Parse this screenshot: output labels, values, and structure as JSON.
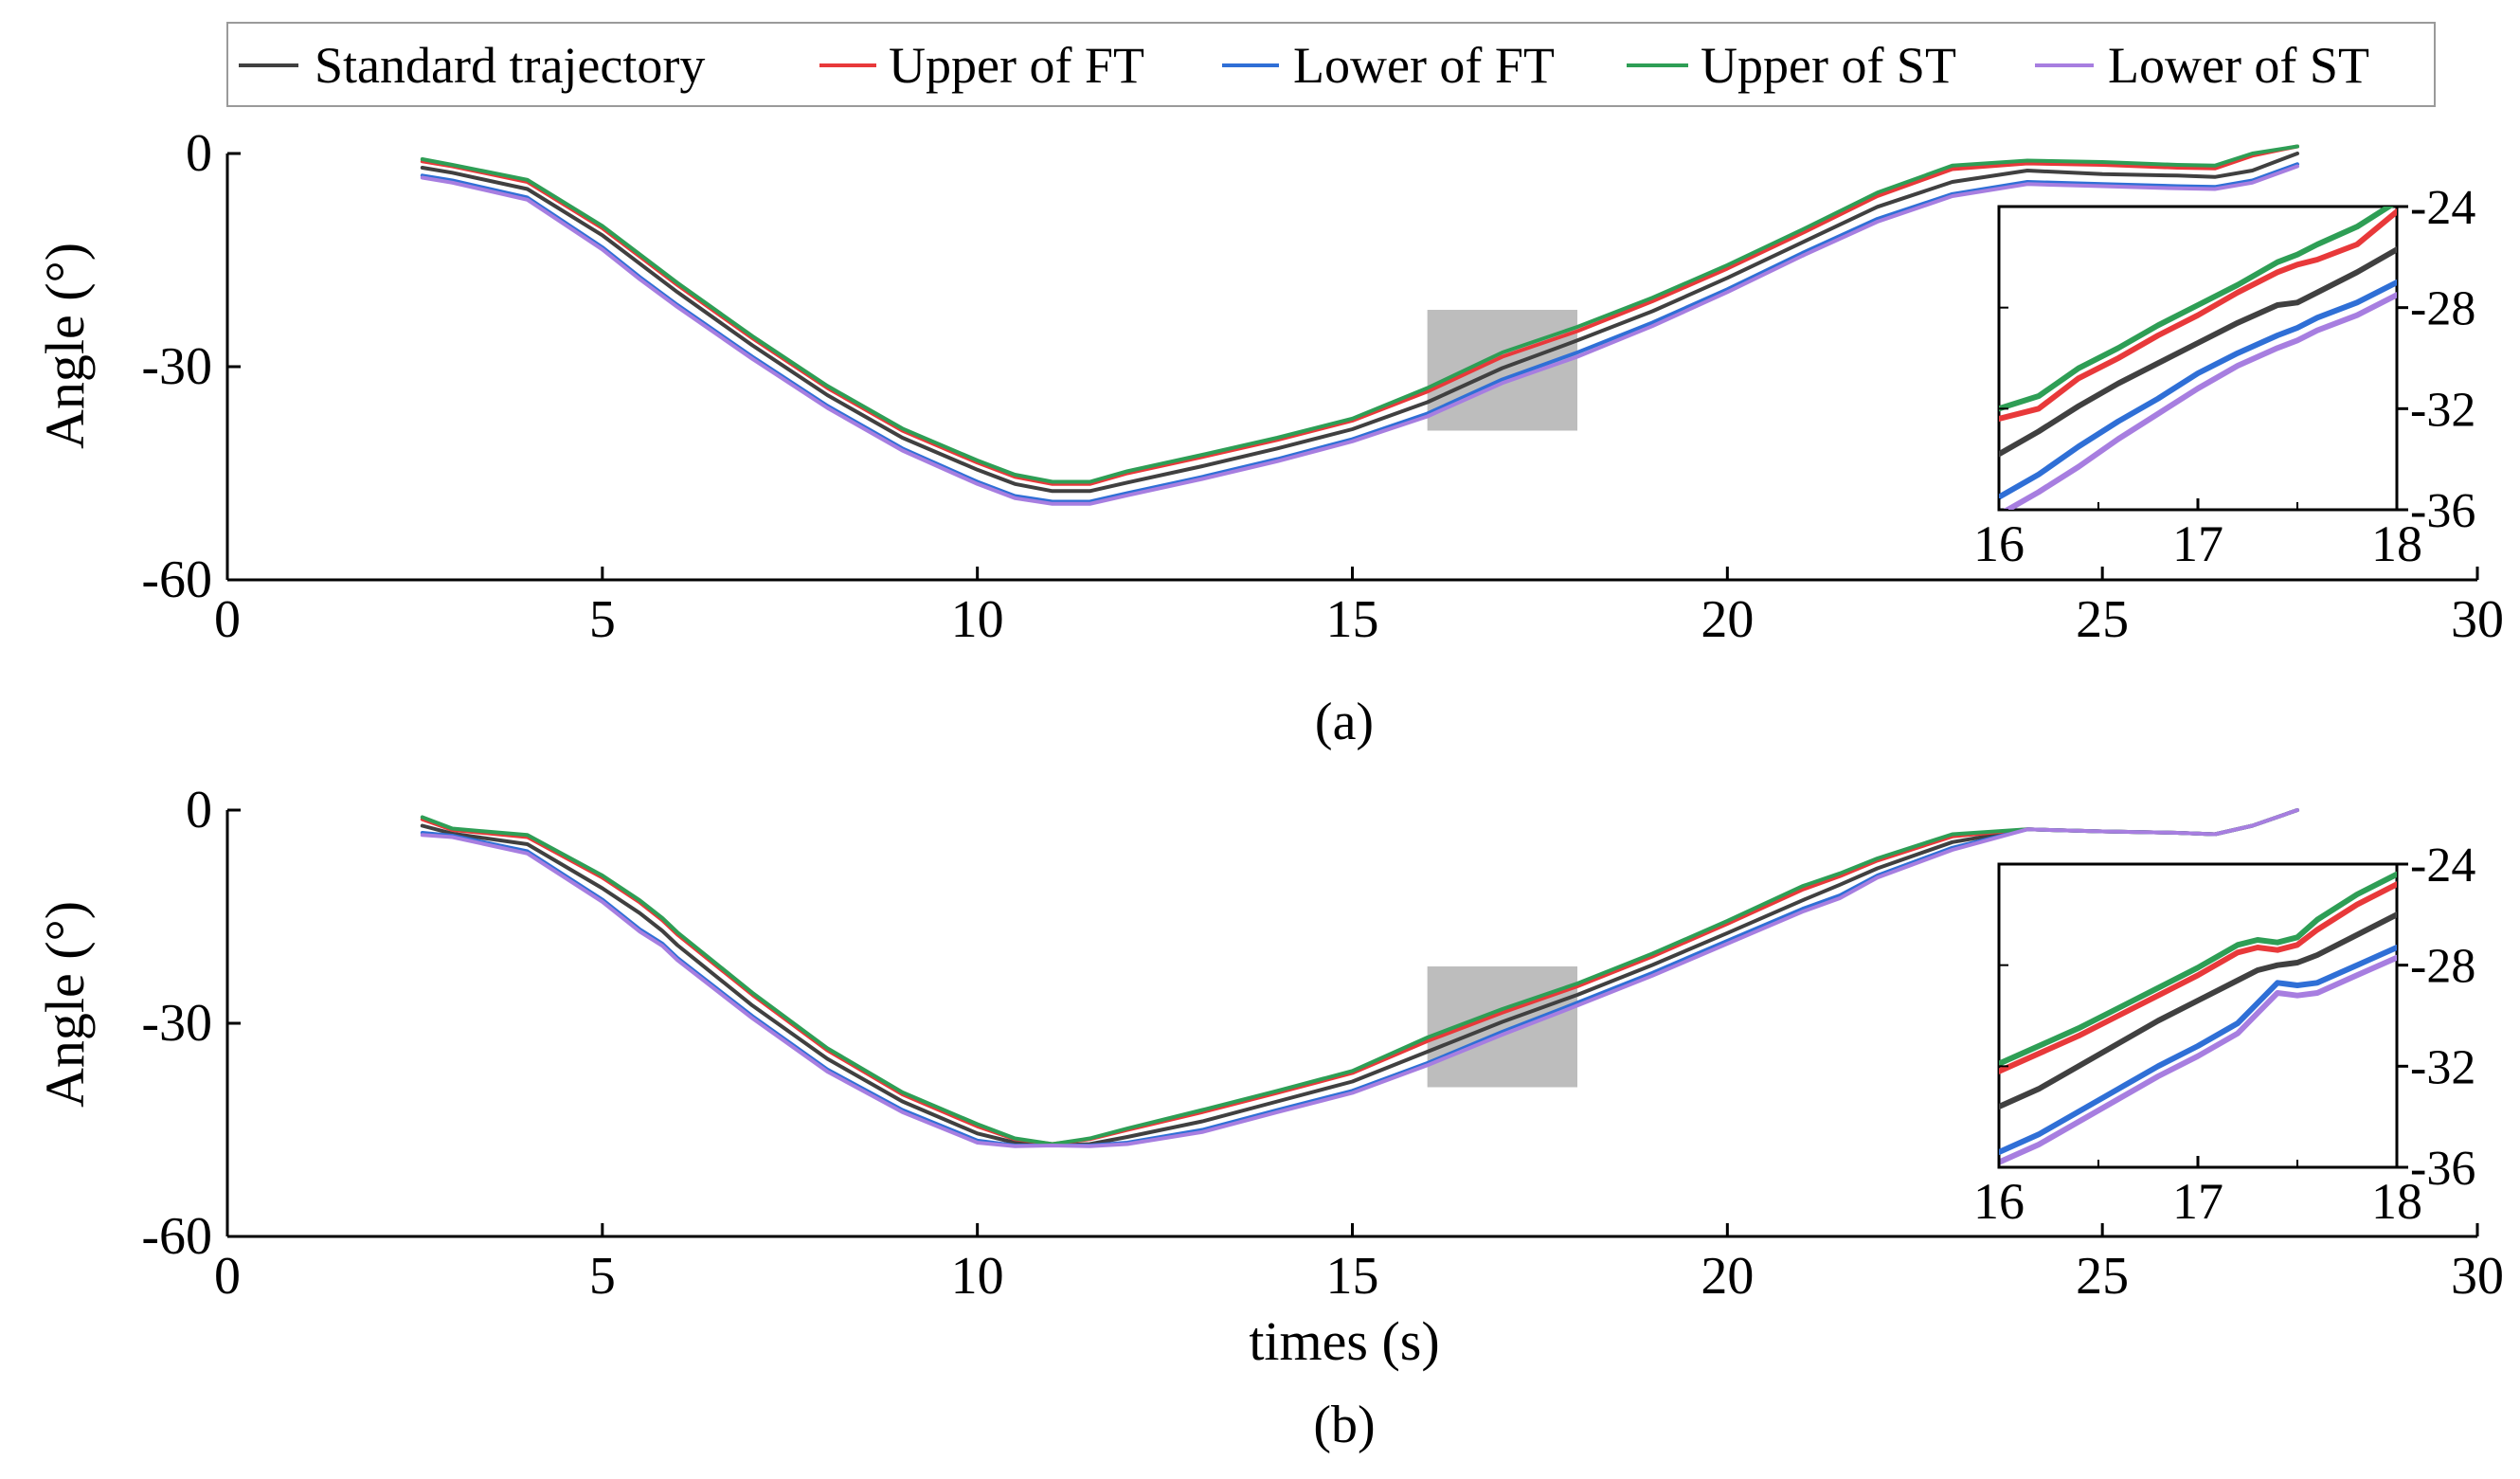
{
  "legend": {
    "items": [
      {
        "label": "Standard trajectory",
        "color": "#404040"
      },
      {
        "label": "Upper of FT",
        "color": "#e8393a"
      },
      {
        "label": "Lower of FT",
        "color": "#2f6fd6"
      },
      {
        "label": "Upper of ST",
        "color": "#2e9e55"
      },
      {
        "label": "Lower of ST",
        "color": "#a77ee0"
      }
    ]
  },
  "zoom_box_color": "#bdbdbd",
  "chart_data": [
    {
      "id": "a",
      "type": "line",
      "caption": "(a)",
      "ylabel": "Angle (°)",
      "xlabel": "",
      "xlim": [
        0,
        30
      ],
      "ylim": [
        -60,
        0
      ],
      "xticks": [
        0,
        5,
        10,
        15,
        20,
        25,
        30
      ],
      "yticks": [
        -60,
        -30,
        0
      ],
      "x": [
        2.6,
        3.0,
        4.0,
        5.0,
        5.5,
        6.0,
        7.0,
        8.0,
        9.0,
        10.0,
        10.5,
        11.0,
        11.5,
        12.0,
        13.0,
        14.0,
        15.0,
        16.0,
        17.0,
        18.0,
        19.0,
        20.0,
        21.0,
        22.0,
        23.0,
        24.0,
        25.0,
        26.0,
        26.5,
        27.0,
        27.6
      ],
      "series": [
        {
          "name": "Standard trajectory",
          "values": [
            -2.0,
            -2.7,
            -5.0,
            -11.5,
            -15.5,
            -19.5,
            -27.0,
            -34.0,
            -40.0,
            -44.5,
            -46.5,
            -47.5,
            -47.5,
            -46.3,
            -44.0,
            -41.5,
            -38.8,
            -35.0,
            -30.2,
            -26.3,
            -22.2,
            -17.5,
            -12.5,
            -7.5,
            -4.0,
            -2.4,
            -2.9,
            -3.1,
            -3.3,
            -2.4,
            0.0
          ]
        },
        {
          "name": "Upper of FT",
          "values": [
            -1.1,
            -1.8,
            -4.0,
            -10.5,
            -14.5,
            -18.5,
            -26.0,
            -33.0,
            -39.0,
            -43.5,
            -45.5,
            -46.5,
            -46.5,
            -45.0,
            -42.7,
            -40.3,
            -37.6,
            -33.5,
            -28.6,
            -25.0,
            -20.8,
            -16.2,
            -11.2,
            -6.0,
            -2.2,
            -1.4,
            -1.6,
            -2.0,
            -2.1,
            -0.3,
            1.0
          ]
        },
        {
          "name": "Lower of FT",
          "values": [
            -3.1,
            -3.8,
            -6.2,
            -13.2,
            -17.4,
            -21.3,
            -28.6,
            -35.5,
            -41.5,
            -46.2,
            -48.2,
            -49.0,
            -49.0,
            -47.8,
            -45.5,
            -43.0,
            -40.2,
            -36.6,
            -31.8,
            -28.0,
            -23.8,
            -19.1,
            -14.0,
            -9.2,
            -5.7,
            -4.0,
            -4.3,
            -4.6,
            -4.7,
            -3.8,
            -1.5
          ]
        },
        {
          "name": "Upper of ST",
          "values": [
            -0.8,
            -1.6,
            -3.7,
            -10.2,
            -14.2,
            -18.2,
            -25.7,
            -32.7,
            -38.7,
            -43.2,
            -45.2,
            -46.2,
            -46.2,
            -44.7,
            -42.4,
            -40.0,
            -37.3,
            -33.0,
            -28.0,
            -24.4,
            -20.3,
            -15.7,
            -10.7,
            -5.5,
            -1.7,
            -1.0,
            -1.2,
            -1.6,
            -1.7,
            0.0,
            1.0
          ]
        },
        {
          "name": "Lower of ST",
          "values": [
            -3.4,
            -4.1,
            -6.5,
            -13.5,
            -17.7,
            -21.6,
            -28.9,
            -35.8,
            -41.8,
            -46.5,
            -48.5,
            -49.3,
            -49.3,
            -48.1,
            -45.8,
            -43.3,
            -40.5,
            -37.0,
            -32.3,
            -28.6,
            -24.3,
            -19.5,
            -14.4,
            -9.6,
            -6.0,
            -4.3,
            -4.6,
            -4.9,
            -5.0,
            -4.1,
            -1.8
          ]
        }
      ],
      "zoom_region": {
        "x": [
          16,
          18
        ],
        "y": [
          -39,
          -22
        ]
      },
      "inset": {
        "xlim": [
          16,
          18
        ],
        "ylim": [
          -36,
          -24
        ],
        "xticks": [
          16,
          17,
          18
        ],
        "yticks": [
          -36,
          -32,
          -28,
          -24
        ],
        "x": [
          16.0,
          16.2,
          16.4,
          16.6,
          16.8,
          17.0,
          17.2,
          17.4,
          17.5,
          17.6,
          17.8,
          18.0
        ],
        "series": [
          {
            "name": "Standard trajectory",
            "values": [
              -33.8,
              -32.9,
              -31.9,
              -31.0,
              -30.2,
              -29.4,
              -28.6,
              -27.9,
              -27.8,
              -27.4,
              -26.6,
              -25.7
            ]
          },
          {
            "name": "Upper of FT",
            "values": [
              -32.4,
              -32.0,
              -30.8,
              -30.0,
              -29.1,
              -28.3,
              -27.4,
              -26.6,
              -26.3,
              -26.1,
              -25.5,
              -24.2
            ]
          },
          {
            "name": "Lower of FT",
            "values": [
              -35.5,
              -34.6,
              -33.5,
              -32.5,
              -31.6,
              -30.6,
              -29.8,
              -29.1,
              -28.8,
              -28.4,
              -27.8,
              -27.0
            ]
          },
          {
            "name": "Upper of ST",
            "values": [
              -32.0,
              -31.5,
              -30.4,
              -29.6,
              -28.7,
              -27.9,
              -27.1,
              -26.2,
              -25.9,
              -25.5,
              -24.8,
              -23.8
            ]
          },
          {
            "name": "Lower of ST",
            "values": [
              -36.2,
              -35.3,
              -34.3,
              -33.2,
              -32.2,
              -31.2,
              -30.3,
              -29.6,
              -29.3,
              -28.9,
              -28.3,
              -27.5
            ]
          }
        ]
      }
    },
    {
      "id": "b",
      "type": "line",
      "caption": "(b)",
      "ylabel": "Angle (°)",
      "xlabel": "times (s)",
      "xlim": [
        0,
        30
      ],
      "ylim": [
        -60,
        0
      ],
      "xticks": [
        0,
        5,
        10,
        15,
        20,
        25,
        30
      ],
      "yticks": [
        -60,
        -30,
        0
      ],
      "x": [
        2.6,
        3.0,
        4.0,
        5.0,
        5.5,
        5.8,
        6.0,
        7.0,
        8.0,
        9.0,
        10.0,
        10.5,
        11.0,
        11.5,
        12.0,
        13.0,
        14.0,
        15.0,
        16.0,
        17.0,
        18.0,
        19.0,
        20.0,
        21.0,
        21.5,
        22.0,
        23.0,
        24.0,
        25.0,
        26.0,
        26.5,
        27.0,
        27.6
      ],
      "series": [
        {
          "name": "Standard trajectory",
          "values": [
            -2.2,
            -3.3,
            -4.8,
            -11.0,
            -14.5,
            -17.0,
            -19.0,
            -27.5,
            -35.0,
            -41.0,
            -45.5,
            -46.8,
            -47.2,
            -47.0,
            -46.0,
            -43.8,
            -41.0,
            -38.2,
            -34.0,
            -29.8,
            -26.0,
            -21.8,
            -17.3,
            -12.7,
            -10.5,
            -8.2,
            -4.5,
            -2.7,
            -3.0,
            -3.2,
            -3.4,
            -2.2,
            0.0
          ]
        },
        {
          "name": "Upper of FT",
          "values": [
            -1.3,
            -2.8,
            -3.8,
            -9.5,
            -13.0,
            -15.5,
            -17.5,
            -26.0,
            -33.8,
            -40.0,
            -44.5,
            -46.3,
            -47.0,
            -46.3,
            -45.0,
            -42.5,
            -39.8,
            -37.0,
            -32.5,
            -28.5,
            -24.8,
            -20.6,
            -16.0,
            -11.2,
            -9.3,
            -7.1,
            -3.7,
            -2.7,
            -3.0,
            -3.2,
            -3.4,
            -2.2,
            0.0
          ]
        },
        {
          "name": "Lower of FT",
          "values": [
            -3.2,
            -3.6,
            -5.8,
            -12.6,
            -16.8,
            -18.8,
            -20.8,
            -29.0,
            -36.5,
            -42.2,
            -46.5,
            -47.2,
            -47.2,
            -47.2,
            -46.8,
            -45.0,
            -42.2,
            -39.5,
            -35.6,
            -31.2,
            -27.1,
            -22.9,
            -18.4,
            -13.9,
            -12.0,
            -9.2,
            -5.3,
            -2.7,
            -3.0,
            -3.2,
            -3.4,
            -2.2,
            0.0
          ]
        },
        {
          "name": "Upper of ST",
          "values": [
            -1.0,
            -2.6,
            -3.5,
            -9.2,
            -12.7,
            -15.2,
            -17.2,
            -25.7,
            -33.5,
            -39.7,
            -44.2,
            -46.2,
            -47.0,
            -46.2,
            -44.8,
            -42.2,
            -39.5,
            -36.7,
            -32.0,
            -28.0,
            -24.4,
            -20.2,
            -15.6,
            -10.7,
            -8.9,
            -6.8,
            -3.4,
            -2.7,
            -3.0,
            -3.2,
            -3.4,
            -2.2,
            0.0
          ]
        },
        {
          "name": "Lower of ST",
          "values": [
            -3.5,
            -3.8,
            -6.1,
            -12.9,
            -17.1,
            -19.1,
            -21.1,
            -29.3,
            -36.8,
            -42.5,
            -46.8,
            -47.3,
            -47.2,
            -47.3,
            -47.0,
            -45.3,
            -42.5,
            -39.8,
            -35.9,
            -31.6,
            -27.5,
            -23.3,
            -18.8,
            -14.3,
            -12.4,
            -9.5,
            -5.6,
            -2.7,
            -3.0,
            -3.2,
            -3.4,
            -2.2,
            0.0
          ]
        }
      ],
      "zoom_region": {
        "x": [
          16,
          18
        ],
        "y": [
          -39,
          -22
        ]
      },
      "inset": {
        "xlim": [
          16,
          18
        ],
        "ylim": [
          -36,
          -24
        ],
        "xticks": [
          16,
          17,
          18
        ],
        "yticks": [
          -36,
          -32,
          -28,
          -24
        ],
        "x": [
          16.0,
          16.2,
          16.4,
          16.6,
          16.8,
          17.0,
          17.2,
          17.3,
          17.4,
          17.5,
          17.6,
          17.8,
          18.0
        ],
        "series": [
          {
            "name": "Standard trajectory",
            "values": [
              -33.6,
              -32.9,
              -32.0,
              -31.1,
              -30.2,
              -29.4,
              -28.6,
              -28.2,
              -28.0,
              -27.9,
              -27.6,
              -26.8,
              -26.0
            ]
          },
          {
            "name": "Upper of FT",
            "values": [
              -32.2,
              -31.5,
              -30.8,
              -30.0,
              -29.2,
              -28.4,
              -27.5,
              -27.3,
              -27.4,
              -27.2,
              -26.6,
              -25.6,
              -24.8
            ]
          },
          {
            "name": "Lower of FT",
            "values": [
              -35.4,
              -34.7,
              -33.8,
              -32.9,
              -32.0,
              -31.2,
              -30.3,
              -29.5,
              -28.7,
              -28.8,
              -28.7,
              -28.0,
              -27.3
            ]
          },
          {
            "name": "Upper of ST",
            "values": [
              -31.9,
              -31.2,
              -30.5,
              -29.7,
              -28.9,
              -28.1,
              -27.2,
              -27.0,
              -27.1,
              -26.9,
              -26.2,
              -25.2,
              -24.4
            ]
          },
          {
            "name": "Lower of ST",
            "values": [
              -35.8,
              -35.1,
              -34.2,
              -33.3,
              -32.4,
              -31.6,
              -30.7,
              -29.9,
              -29.1,
              -29.2,
              -29.1,
              -28.4,
              -27.7
            ]
          }
        ]
      }
    }
  ]
}
